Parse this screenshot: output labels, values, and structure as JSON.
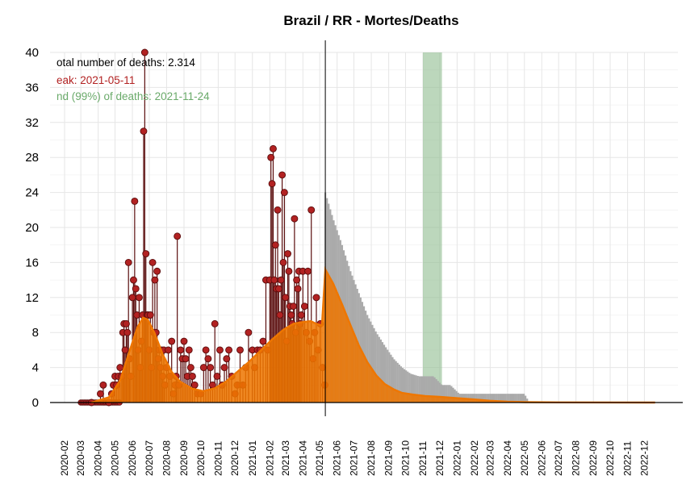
{
  "chart_data": {
    "type": "bar",
    "title": "Brazil / RR - Mortes/Deaths",
    "xlabel": "",
    "ylabel": "",
    "ylim": [
      0,
      40
    ],
    "y_ticks": [
      "0",
      "4",
      "8",
      "12",
      "16",
      "20",
      "24",
      "28",
      "32",
      "36",
      "40"
    ],
    "x_range": [
      "2020-02-01",
      "2023-01-01"
    ],
    "x_ticks": [
      "2020-02",
      "2020-03",
      "2020-04",
      "2020-05",
      "2020-06",
      "2020-07",
      "2020-08",
      "2020-09",
      "2020-10",
      "2020-11",
      "2020-12",
      "2021-01",
      "2021-02",
      "2021-03",
      "2021-04",
      "2021-05",
      "2021-06",
      "2021-07",
      "2021-08",
      "2021-09",
      "2021-10",
      "2021-11",
      "2021-12",
      "2022-01",
      "2022-02",
      "2022-03",
      "2022-04",
      "2022-05",
      "2022-06",
      "2022-07",
      "2022-08",
      "2022-09",
      "2022-10",
      "2022-11",
      "2022-12"
    ],
    "grid": true,
    "annotations": {
      "total": "otal number of deaths: 2.314",
      "peak": "eak: 2021-05-11",
      "end": "nd (99%) of deaths: 2021-11-24"
    },
    "current_date": "2021-05-11",
    "end_band": [
      "2021-11-01",
      "2021-12-05"
    ],
    "colors": {
      "observed": "#b22222",
      "observed_line": "#5a0d0d",
      "fit": "#ee7600",
      "projection": "#aaaaaa",
      "band": "#8fbc8f",
      "annotation_total": "#000000",
      "annotation_peak": "#b22222",
      "annotation_end": "#6aaa6a"
    },
    "series": [
      {
        "type": "observed-daily-points",
        "points": [
          [
            "2020-03-20",
            0
          ],
          [
            "2020-04-05",
            1
          ],
          [
            "2020-04-10",
            2
          ],
          [
            "2020-04-20",
            0
          ],
          [
            "2020-04-25",
            1
          ],
          [
            "2020-04-28",
            2
          ],
          [
            "2020-05-01",
            3
          ],
          [
            "2020-05-04",
            2
          ],
          [
            "2020-05-07",
            3
          ],
          [
            "2020-05-10",
            4
          ],
          [
            "2020-05-13",
            3
          ],
          [
            "2020-05-15",
            8
          ],
          [
            "2020-05-17",
            9
          ],
          [
            "2020-05-19",
            6
          ],
          [
            "2020-05-21",
            9
          ],
          [
            "2020-05-23",
            8
          ],
          [
            "2020-05-25",
            16
          ],
          [
            "2020-05-27",
            5
          ],
          [
            "2020-05-29",
            3
          ],
          [
            "2020-06-01",
            12
          ],
          [
            "2020-06-03",
            14
          ],
          [
            "2020-06-05",
            23
          ],
          [
            "2020-06-07",
            13
          ],
          [
            "2020-06-09",
            10
          ],
          [
            "2020-06-11",
            6
          ],
          [
            "2020-06-13",
            12
          ],
          [
            "2020-06-15",
            4
          ],
          [
            "2020-06-17",
            7
          ],
          [
            "2020-06-19",
            10
          ],
          [
            "2020-06-21",
            31
          ],
          [
            "2020-06-23",
            40
          ],
          [
            "2020-06-25",
            17
          ],
          [
            "2020-06-27",
            10
          ],
          [
            "2020-06-29",
            10
          ],
          [
            "2020-07-01",
            6
          ],
          [
            "2020-07-03",
            10
          ],
          [
            "2020-07-05",
            4
          ],
          [
            "2020-07-07",
            16
          ],
          [
            "2020-07-09",
            8
          ],
          [
            "2020-07-11",
            14
          ],
          [
            "2020-07-13",
            8
          ],
          [
            "2020-07-15",
            15
          ],
          [
            "2020-07-17",
            5
          ],
          [
            "2020-07-19",
            6
          ],
          [
            "2020-07-21",
            4
          ],
          [
            "2020-07-23",
            6
          ],
          [
            "2020-07-25",
            3
          ],
          [
            "2020-07-27",
            6
          ],
          [
            "2020-07-29",
            2
          ],
          [
            "2020-08-01",
            4
          ],
          [
            "2020-08-04",
            6
          ],
          [
            "2020-08-07",
            3
          ],
          [
            "2020-08-10",
            7
          ],
          [
            "2020-08-13",
            1
          ],
          [
            "2020-08-16",
            2
          ],
          [
            "2020-08-18",
            3
          ],
          [
            "2020-08-20",
            19
          ],
          [
            "2020-08-23",
            2
          ],
          [
            "2020-08-26",
            6
          ],
          [
            "2020-08-29",
            5
          ],
          [
            "2020-09-01",
            7
          ],
          [
            "2020-09-04",
            5
          ],
          [
            "2020-09-07",
            3
          ],
          [
            "2020-09-10",
            6
          ],
          [
            "2020-09-13",
            4
          ],
          [
            "2020-09-16",
            3
          ],
          [
            "2020-09-20",
            2
          ],
          [
            "2020-09-25",
            1
          ],
          [
            "2020-10-01",
            1
          ],
          [
            "2020-10-06",
            4
          ],
          [
            "2020-10-10",
            6
          ],
          [
            "2020-10-14",
            5
          ],
          [
            "2020-10-18",
            4
          ],
          [
            "2020-10-22",
            2
          ],
          [
            "2020-10-26",
            9
          ],
          [
            "2020-10-30",
            3
          ],
          [
            "2020-11-04",
            6
          ],
          [
            "2020-11-08",
            2
          ],
          [
            "2020-11-12",
            4
          ],
          [
            "2020-11-16",
            5
          ],
          [
            "2020-11-20",
            6
          ],
          [
            "2020-11-25",
            3
          ],
          [
            "2020-12-01",
            1
          ],
          [
            "2020-12-05",
            2
          ],
          [
            "2020-12-10",
            6
          ],
          [
            "2020-12-15",
            2
          ],
          [
            "2020-12-20",
            4
          ],
          [
            "2020-12-25",
            8
          ],
          [
            "2021-01-01",
            6
          ],
          [
            "2021-01-05",
            4
          ],
          [
            "2021-01-10",
            6
          ],
          [
            "2021-01-15",
            6
          ],
          [
            "2021-01-20",
            7
          ],
          [
            "2021-01-25",
            14
          ],
          [
            "2021-01-28",
            6
          ],
          [
            "2021-02-01",
            14
          ],
          [
            "2021-02-03",
            28
          ],
          [
            "2021-02-05",
            25
          ],
          [
            "2021-02-07",
            29
          ],
          [
            "2021-02-09",
            14
          ],
          [
            "2021-02-11",
            18
          ],
          [
            "2021-02-13",
            13
          ],
          [
            "2021-02-15",
            22
          ],
          [
            "2021-02-17",
            13
          ],
          [
            "2021-02-19",
            10
          ],
          [
            "2021-02-21",
            14
          ],
          [
            "2021-02-23",
            26
          ],
          [
            "2021-02-25",
            16
          ],
          [
            "2021-02-27",
            24
          ],
          [
            "2021-03-01",
            12
          ],
          [
            "2021-03-03",
            7
          ],
          [
            "2021-03-05",
            17
          ],
          [
            "2021-03-07",
            15
          ],
          [
            "2021-03-09",
            11
          ],
          [
            "2021-03-11",
            10
          ],
          [
            "2021-03-13",
            9
          ],
          [
            "2021-03-15",
            11
          ],
          [
            "2021-03-17",
            21
          ],
          [
            "2021-03-19",
            8
          ],
          [
            "2021-03-21",
            14
          ],
          [
            "2021-03-23",
            13
          ],
          [
            "2021-03-25",
            15
          ],
          [
            "2021-03-27",
            9
          ],
          [
            "2021-03-29",
            10
          ],
          [
            "2021-04-01",
            15
          ],
          [
            "2021-04-04",
            11
          ],
          [
            "2021-04-07",
            8
          ],
          [
            "2021-04-10",
            15
          ],
          [
            "2021-04-13",
            7
          ],
          [
            "2021-04-16",
            22
          ],
          [
            "2021-04-19",
            5
          ],
          [
            "2021-04-22",
            8
          ],
          [
            "2021-04-25",
            12
          ],
          [
            "2021-04-28",
            6
          ],
          [
            "2021-05-02",
            9
          ],
          [
            "2021-05-06",
            4
          ],
          [
            "2021-05-10",
            2
          ]
        ]
      },
      {
        "type": "fit",
        "points": [
          [
            "2020-03-20",
            0
          ],
          [
            "2020-04-20",
            0.6
          ],
          [
            "2020-05-10",
            2.5
          ],
          [
            "2020-05-25",
            5.5
          ],
          [
            "2020-06-10",
            8.6
          ],
          [
            "2020-06-20",
            9.7
          ],
          [
            "2020-06-28",
            9.5
          ],
          [
            "2020-07-10",
            8.0
          ],
          [
            "2020-07-25",
            5.5
          ],
          [
            "2020-08-10",
            3.5
          ],
          [
            "2020-08-25",
            2.4
          ],
          [
            "2020-09-15",
            1.6
          ],
          [
            "2020-10-05",
            1.3
          ],
          [
            "2020-10-25",
            1.6
          ],
          [
            "2020-11-15",
            2.4
          ],
          [
            "2020-12-05",
            3.5
          ],
          [
            "2020-12-25",
            4.6
          ],
          [
            "2021-01-15",
            5.9
          ],
          [
            "2021-02-05",
            7.2
          ],
          [
            "2021-02-25",
            8.3
          ],
          [
            "2021-03-15",
            9.0
          ],
          [
            "2021-04-01",
            9.2
          ],
          [
            "2021-04-15",
            9.3
          ],
          [
            "2021-04-25",
            9.0
          ],
          [
            "2021-05-05",
            8.8
          ],
          [
            "2021-05-11",
            15.2
          ],
          [
            "2021-05-25",
            13.6
          ],
          [
            "2021-06-10",
            11.2
          ],
          [
            "2021-06-25",
            8.8
          ],
          [
            "2021-07-10",
            6.5
          ],
          [
            "2021-07-25",
            4.6
          ],
          [
            "2021-08-10",
            3.1
          ],
          [
            "2021-08-25",
            2.1
          ],
          [
            "2021-09-10",
            1.5
          ],
          [
            "2021-09-25",
            1.1
          ],
          [
            "2021-10-15",
            0.9
          ],
          [
            "2021-11-05",
            0.75
          ],
          [
            "2021-12-01",
            0.65
          ],
          [
            "2022-01-01",
            0.5
          ],
          [
            "2022-02-01",
            0.35
          ],
          [
            "2022-03-01",
            0.2
          ],
          [
            "2022-04-01",
            0.1
          ],
          [
            "2022-05-01",
            0.05
          ],
          [
            "2022-07-01",
            0.02
          ],
          [
            "2022-12-20",
            0
          ]
        ]
      },
      {
        "type": "projection-daily",
        "points": [
          [
            "2021-05-11",
            24
          ],
          [
            "2021-05-25",
            21
          ],
          [
            "2021-06-10",
            18
          ],
          [
            "2021-06-25",
            15
          ],
          [
            "2021-07-10",
            12.5
          ],
          [
            "2021-07-25",
            10
          ],
          [
            "2021-08-10",
            8
          ],
          [
            "2021-08-25",
            6.5
          ],
          [
            "2021-09-10",
            5
          ],
          [
            "2021-09-25",
            4
          ],
          [
            "2021-10-10",
            3.3
          ],
          [
            "2021-10-25",
            3
          ],
          [
            "2021-11-05",
            3
          ],
          [
            "2021-11-20",
            3
          ],
          [
            "2021-12-05",
            2
          ],
          [
            "2021-12-20",
            2
          ],
          [
            "2022-01-05",
            1
          ],
          [
            "2022-05-01",
            1
          ],
          [
            "2022-05-10",
            0
          ]
        ]
      }
    ]
  }
}
